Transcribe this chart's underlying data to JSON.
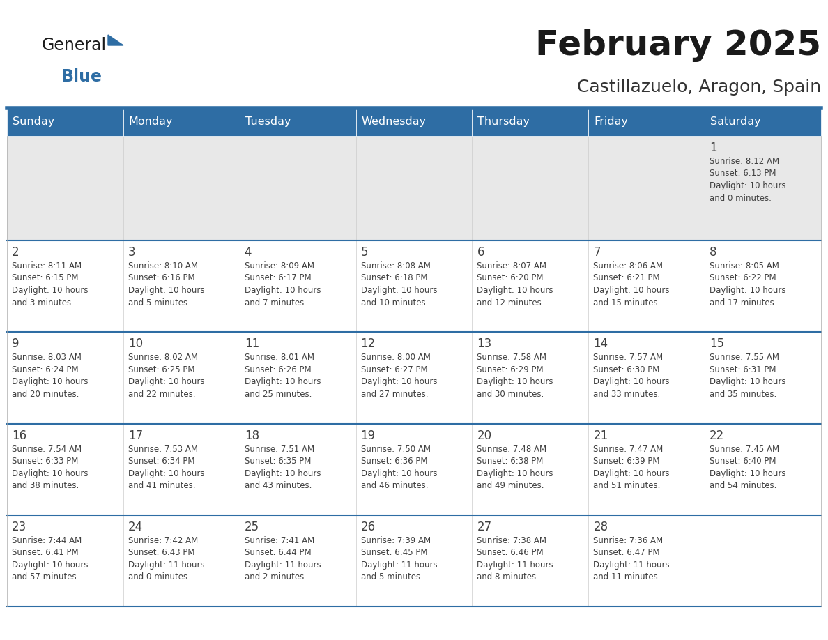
{
  "title": "February 2025",
  "subtitle": "Castillazuelo, Aragon, Spain",
  "header_bg_color": "#2E6DA4",
  "header_text_color": "#FFFFFF",
  "row1_bg_color": "#E8E8E8",
  "row_bg_color": "#FFFFFF",
  "day_headers": [
    "Sunday",
    "Monday",
    "Tuesday",
    "Wednesday",
    "Thursday",
    "Friday",
    "Saturday"
  ],
  "title_color": "#1a1a1a",
  "subtitle_color": "#333333",
  "text_color": "#404040",
  "line_color": "#2E6DA4",
  "logo_text_color": "#1a1a1a",
  "logo_blue_color": "#2E6DA4",
  "calendar": [
    [
      {
        "day": null,
        "info": ""
      },
      {
        "day": null,
        "info": ""
      },
      {
        "day": null,
        "info": ""
      },
      {
        "day": null,
        "info": ""
      },
      {
        "day": null,
        "info": ""
      },
      {
        "day": null,
        "info": ""
      },
      {
        "day": 1,
        "info": "Sunrise: 8:12 AM\nSunset: 6:13 PM\nDaylight: 10 hours\nand 0 minutes."
      }
    ],
    [
      {
        "day": 2,
        "info": "Sunrise: 8:11 AM\nSunset: 6:15 PM\nDaylight: 10 hours\nand 3 minutes."
      },
      {
        "day": 3,
        "info": "Sunrise: 8:10 AM\nSunset: 6:16 PM\nDaylight: 10 hours\nand 5 minutes."
      },
      {
        "day": 4,
        "info": "Sunrise: 8:09 AM\nSunset: 6:17 PM\nDaylight: 10 hours\nand 7 minutes."
      },
      {
        "day": 5,
        "info": "Sunrise: 8:08 AM\nSunset: 6:18 PM\nDaylight: 10 hours\nand 10 minutes."
      },
      {
        "day": 6,
        "info": "Sunrise: 8:07 AM\nSunset: 6:20 PM\nDaylight: 10 hours\nand 12 minutes."
      },
      {
        "day": 7,
        "info": "Sunrise: 8:06 AM\nSunset: 6:21 PM\nDaylight: 10 hours\nand 15 minutes."
      },
      {
        "day": 8,
        "info": "Sunrise: 8:05 AM\nSunset: 6:22 PM\nDaylight: 10 hours\nand 17 minutes."
      }
    ],
    [
      {
        "day": 9,
        "info": "Sunrise: 8:03 AM\nSunset: 6:24 PM\nDaylight: 10 hours\nand 20 minutes."
      },
      {
        "day": 10,
        "info": "Sunrise: 8:02 AM\nSunset: 6:25 PM\nDaylight: 10 hours\nand 22 minutes."
      },
      {
        "day": 11,
        "info": "Sunrise: 8:01 AM\nSunset: 6:26 PM\nDaylight: 10 hours\nand 25 minutes."
      },
      {
        "day": 12,
        "info": "Sunrise: 8:00 AM\nSunset: 6:27 PM\nDaylight: 10 hours\nand 27 minutes."
      },
      {
        "day": 13,
        "info": "Sunrise: 7:58 AM\nSunset: 6:29 PM\nDaylight: 10 hours\nand 30 minutes."
      },
      {
        "day": 14,
        "info": "Sunrise: 7:57 AM\nSunset: 6:30 PM\nDaylight: 10 hours\nand 33 minutes."
      },
      {
        "day": 15,
        "info": "Sunrise: 7:55 AM\nSunset: 6:31 PM\nDaylight: 10 hours\nand 35 minutes."
      }
    ],
    [
      {
        "day": 16,
        "info": "Sunrise: 7:54 AM\nSunset: 6:33 PM\nDaylight: 10 hours\nand 38 minutes."
      },
      {
        "day": 17,
        "info": "Sunrise: 7:53 AM\nSunset: 6:34 PM\nDaylight: 10 hours\nand 41 minutes."
      },
      {
        "day": 18,
        "info": "Sunrise: 7:51 AM\nSunset: 6:35 PM\nDaylight: 10 hours\nand 43 minutes."
      },
      {
        "day": 19,
        "info": "Sunrise: 7:50 AM\nSunset: 6:36 PM\nDaylight: 10 hours\nand 46 minutes."
      },
      {
        "day": 20,
        "info": "Sunrise: 7:48 AM\nSunset: 6:38 PM\nDaylight: 10 hours\nand 49 minutes."
      },
      {
        "day": 21,
        "info": "Sunrise: 7:47 AM\nSunset: 6:39 PM\nDaylight: 10 hours\nand 51 minutes."
      },
      {
        "day": 22,
        "info": "Sunrise: 7:45 AM\nSunset: 6:40 PM\nDaylight: 10 hours\nand 54 minutes."
      }
    ],
    [
      {
        "day": 23,
        "info": "Sunrise: 7:44 AM\nSunset: 6:41 PM\nDaylight: 10 hours\nand 57 minutes."
      },
      {
        "day": 24,
        "info": "Sunrise: 7:42 AM\nSunset: 6:43 PM\nDaylight: 11 hours\nand 0 minutes."
      },
      {
        "day": 25,
        "info": "Sunrise: 7:41 AM\nSunset: 6:44 PM\nDaylight: 11 hours\nand 2 minutes."
      },
      {
        "day": 26,
        "info": "Sunrise: 7:39 AM\nSunset: 6:45 PM\nDaylight: 11 hours\nand 5 minutes."
      },
      {
        "day": 27,
        "info": "Sunrise: 7:38 AM\nSunset: 6:46 PM\nDaylight: 11 hours\nand 8 minutes."
      },
      {
        "day": 28,
        "info": "Sunrise: 7:36 AM\nSunset: 6:47 PM\nDaylight: 11 hours\nand 11 minutes."
      },
      {
        "day": null,
        "info": ""
      }
    ]
  ]
}
